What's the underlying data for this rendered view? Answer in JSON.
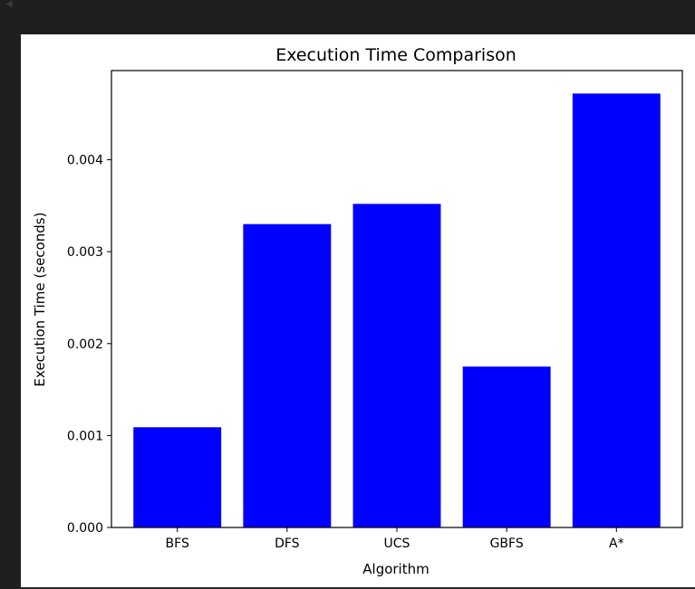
{
  "chart_data": {
    "type": "bar",
    "title": "Execution Time Comparison",
    "xlabel": "Algorithm",
    "ylabel": "Execution Time (seconds)",
    "categories": [
      "BFS",
      "DFS",
      "UCS",
      "GBFS",
      "A*"
    ],
    "values": [
      0.00109,
      0.0033,
      0.00352,
      0.00175,
      0.00472
    ],
    "ylim": [
      0,
      0.00497
    ],
    "yticks": [
      0.0,
      0.001,
      0.002,
      0.003,
      0.004
    ],
    "ytick_labels": [
      "0.000",
      "0.001",
      "0.002",
      "0.003",
      "0.004"
    ],
    "bar_color": "#0000ff",
    "grid": false,
    "legend": "none"
  }
}
